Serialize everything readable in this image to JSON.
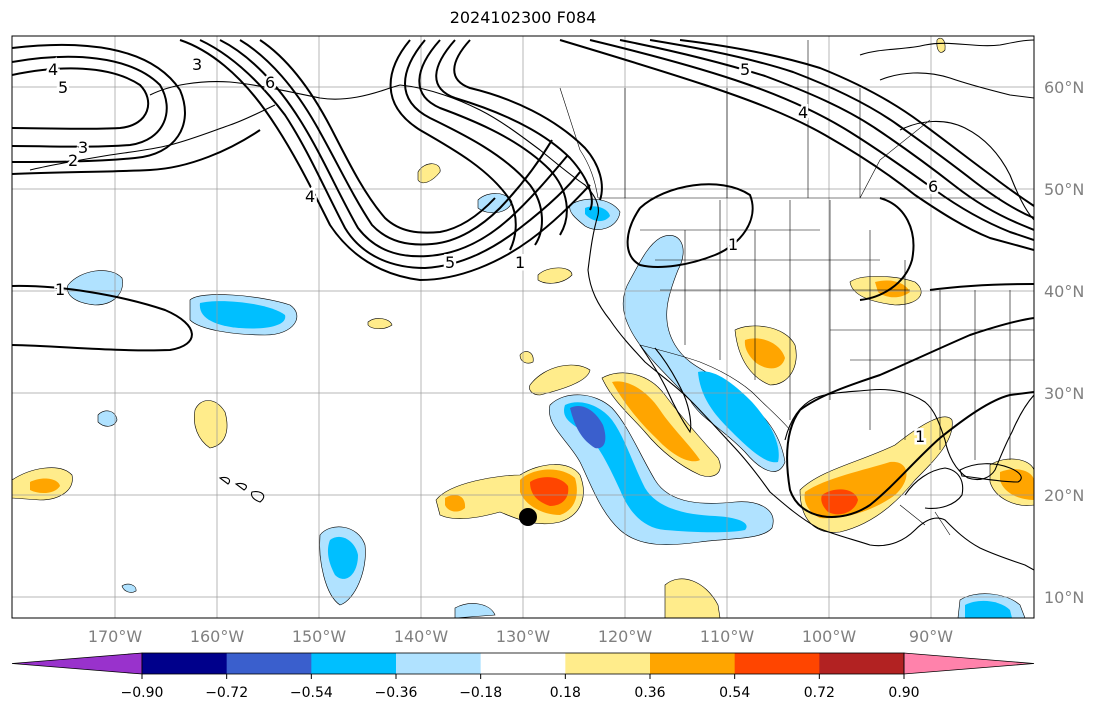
{
  "title": "2024102300 F084",
  "map": {
    "lat_labels": [
      "60°N",
      "50°N",
      "40°N",
      "30°N",
      "20°N",
      "10°N"
    ],
    "lon_labels": [
      "170°W",
      "160°W",
      "150°W",
      "140°W",
      "130°W",
      "120°W",
      "110°W",
      "100°W",
      "90°W"
    ],
    "contour_labels": [
      "4",
      "5",
      "3",
      "2",
      "3",
      "6",
      "4",
      "5",
      "1",
      "1",
      "1",
      "5",
      "4",
      "6",
      "1"
    ]
  },
  "colorbar": {
    "levels": [
      "−0.90",
      "−0.72",
      "−0.54",
      "−0.36",
      "−0.18",
      "0.18",
      "0.36",
      "0.54",
      "0.72",
      "0.90"
    ],
    "colors": [
      "#9932cc",
      "#00008b",
      "#3a5fcd",
      "#00bfff",
      "#b0e2ff",
      "#ffffff",
      "#ffec8b",
      "#ffa500",
      "#ff4500",
      "#b22222",
      "#ff82ab"
    ]
  }
}
